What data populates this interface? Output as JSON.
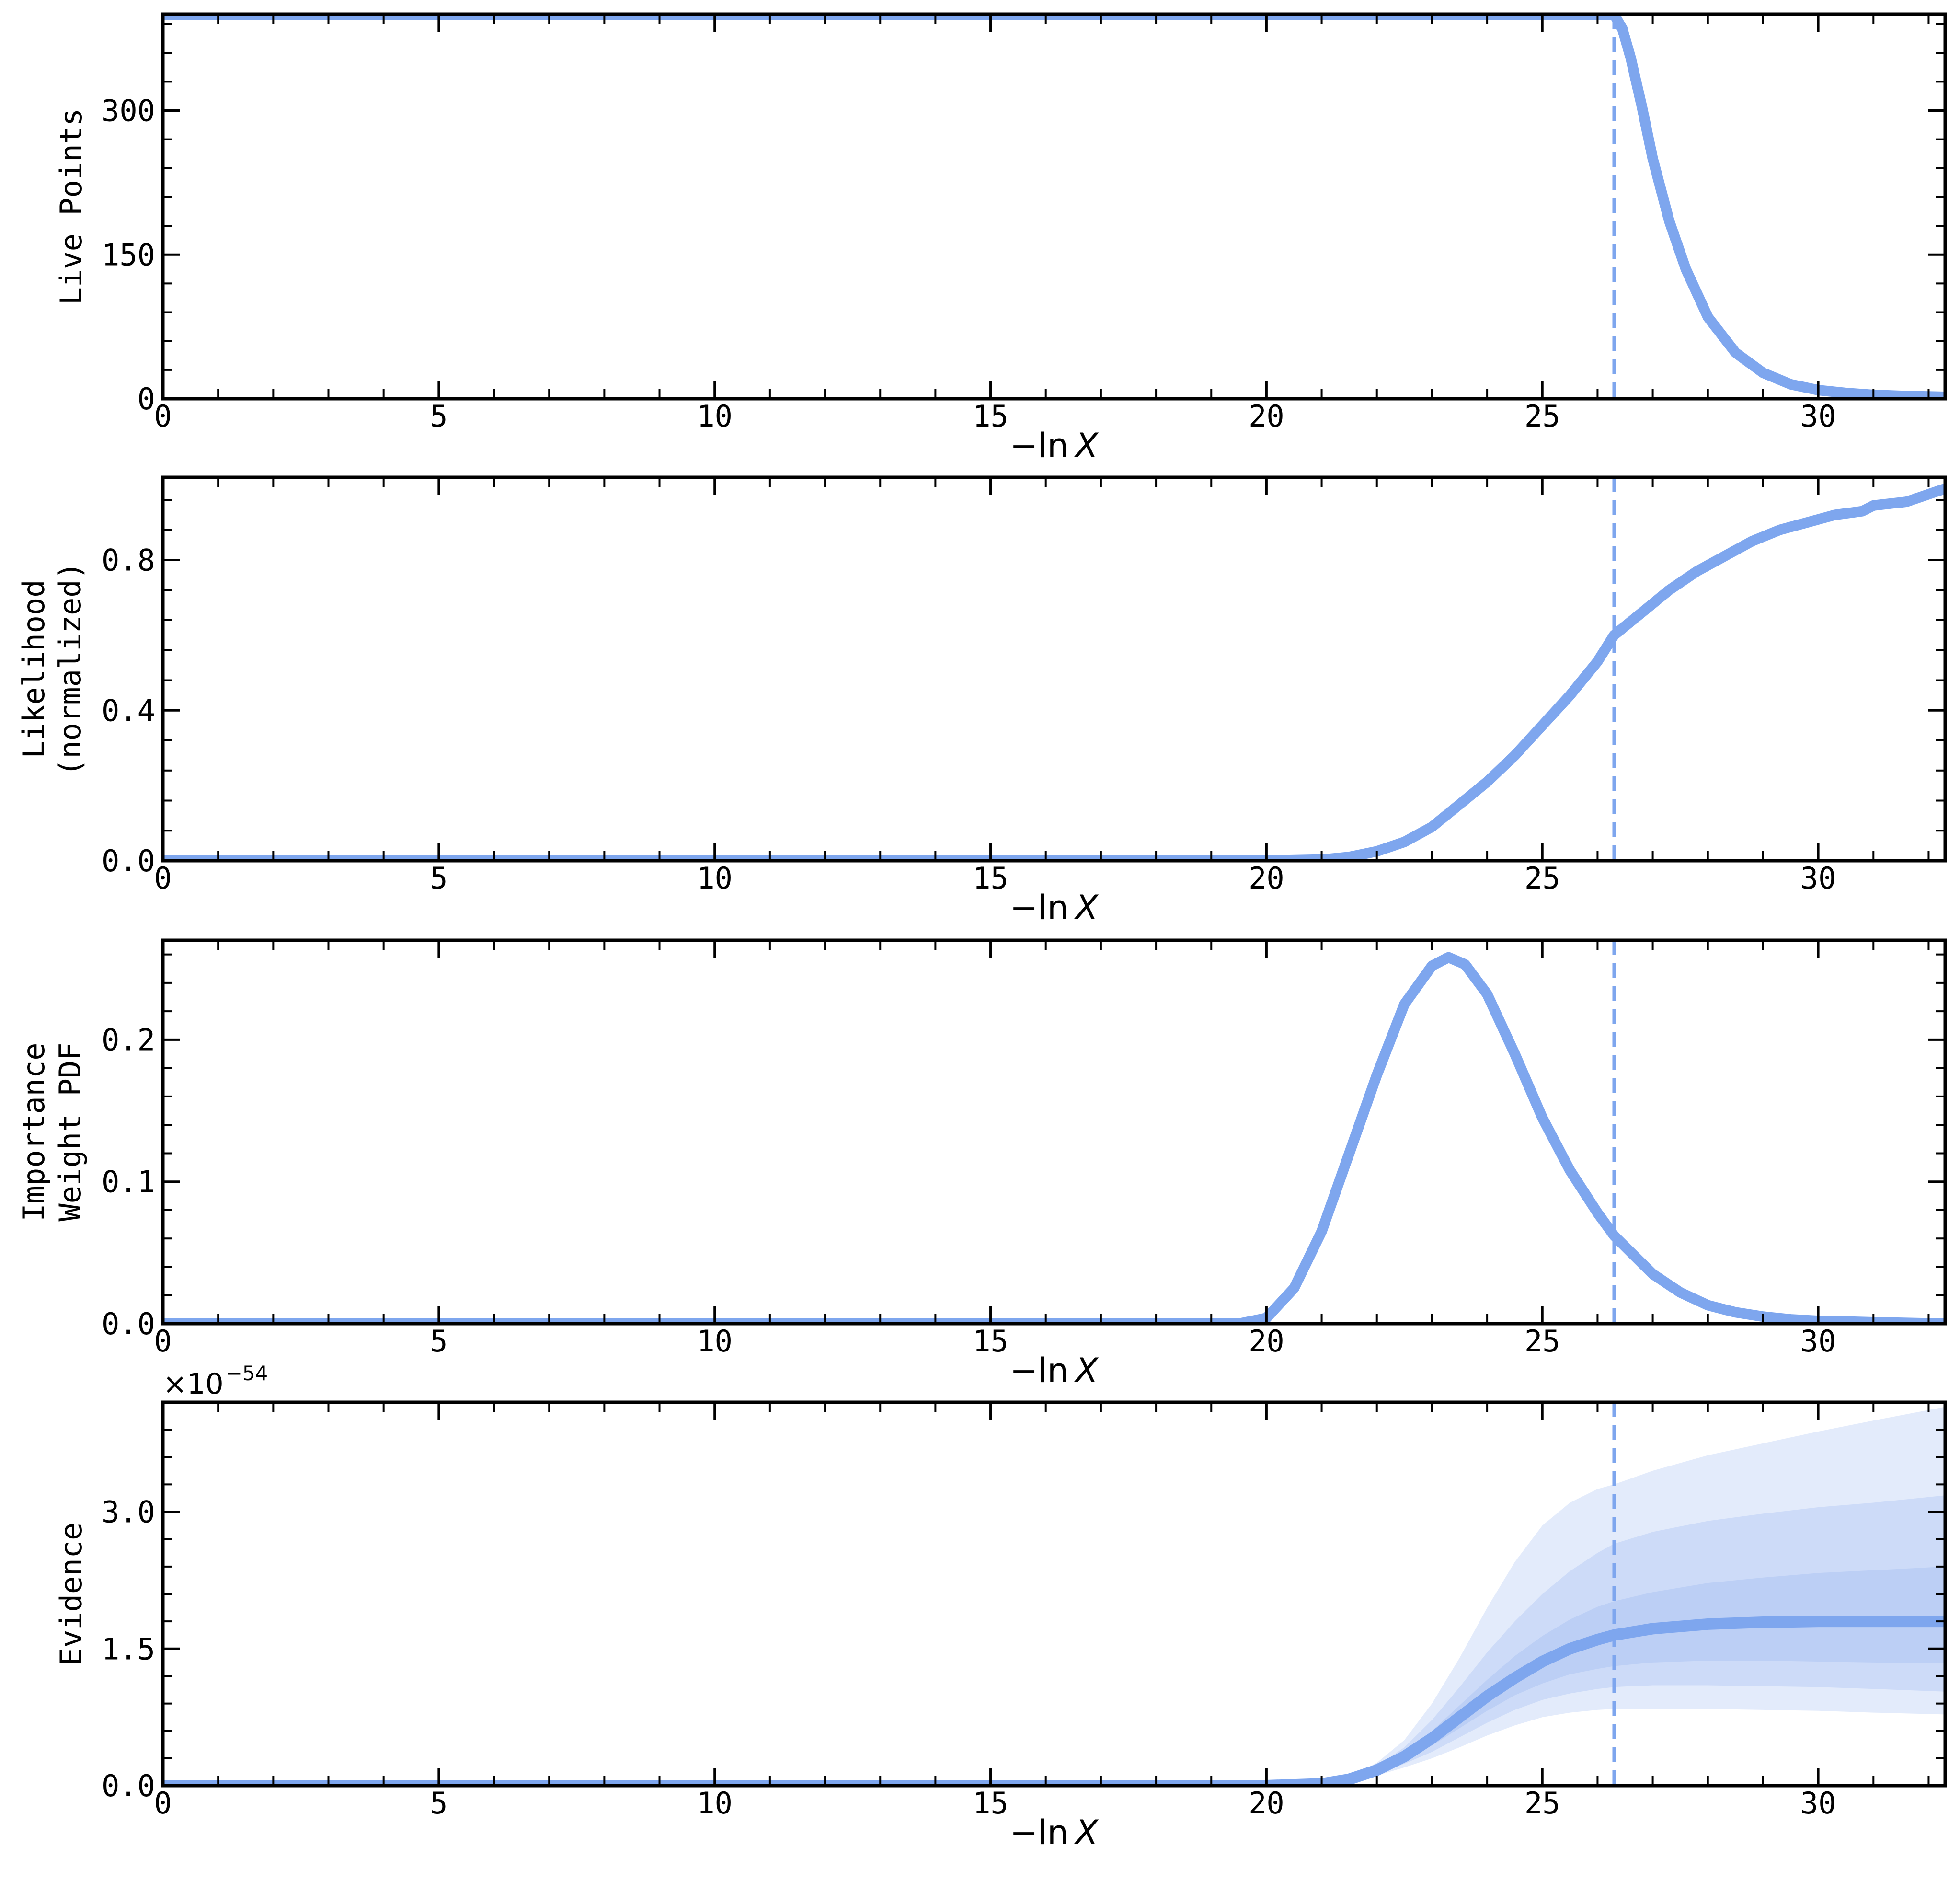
{
  "chart_data": [
    {
      "type": "line",
      "ylabel": [
        "Live Points"
      ],
      "xlabel_prefix": "−ln",
      "xlabel_var": "X",
      "xlim": [
        0,
        32.3
      ],
      "ylim": [
        0,
        400
      ],
      "xticks": [
        0,
        5,
        10,
        15,
        20,
        25,
        30
      ],
      "yticks": [
        0,
        150,
        300
      ],
      "ytick_labels": [
        "0",
        "150",
        "300"
      ],
      "vline_x": 26.3,
      "color": "#7ea6ee",
      "series": [
        {
          "x": [
            0,
            26.3,
            26.45,
            26.6,
            26.8,
            27.0,
            27.3,
            27.6,
            28.0,
            28.5,
            29.0,
            29.5,
            30.0,
            30.5,
            31.0,
            31.5,
            32.3
          ],
          "y": [
            400,
            400,
            385,
            355,
            305,
            250,
            185,
            135,
            85,
            48,
            27,
            15,
            9,
            6,
            4,
            3,
            2
          ]
        }
      ]
    },
    {
      "type": "line",
      "ylabel": [
        "Likelihood",
        "(normalized)"
      ],
      "xlabel_prefix": "−ln",
      "xlabel_var": "X",
      "xlim": [
        0,
        32.3
      ],
      "ylim": [
        0,
        1.02
      ],
      "xticks": [
        0,
        5,
        10,
        15,
        20,
        25,
        30
      ],
      "yticks": [
        0.0,
        0.4,
        0.8
      ],
      "ytick_labels": [
        "0.0",
        "0.4",
        "0.8"
      ],
      "vline_x": 26.3,
      "color": "#7ea6ee",
      "series": [
        {
          "x": [
            0,
            20.0,
            21.0,
            21.5,
            22.0,
            22.5,
            23.0,
            23.5,
            24.0,
            24.5,
            25.0,
            25.5,
            26.0,
            26.3,
            26.8,
            27.3,
            27.8,
            28.3,
            28.8,
            29.3,
            29.8,
            30.3,
            30.8,
            31.0,
            31.6,
            32.3
          ],
          "y": [
            0,
            0,
            0.003,
            0.01,
            0.025,
            0.05,
            0.09,
            0.15,
            0.21,
            0.28,
            0.36,
            0.44,
            0.53,
            0.6,
            0.66,
            0.72,
            0.77,
            0.81,
            0.85,
            0.88,
            0.9,
            0.92,
            0.93,
            0.945,
            0.955,
            0.99
          ]
        }
      ]
    },
    {
      "type": "line",
      "ylabel": [
        "Importance",
        "Weight PDF"
      ],
      "xlabel_prefix": "−ln",
      "xlabel_var": "X",
      "xlim": [
        0,
        32.3
      ],
      "ylim": [
        0,
        0.27
      ],
      "xticks": [
        0,
        5,
        10,
        15,
        20,
        25,
        30
      ],
      "yticks": [
        0.0,
        0.1,
        0.2
      ],
      "ytick_labels": [
        "0.0",
        "0.1",
        "0.2"
      ],
      "vline_x": 26.3,
      "color": "#7ea6ee",
      "series": [
        {
          "x": [
            0,
            19.5,
            20.0,
            20.5,
            21.0,
            21.5,
            22.0,
            22.5,
            23.0,
            23.3,
            23.6,
            24.0,
            24.5,
            25.0,
            25.5,
            26.0,
            26.3,
            27.0,
            27.5,
            28.0,
            28.5,
            29.0,
            29.5,
            30.0,
            31.0,
            32.3
          ],
          "y": [
            0,
            0,
            0.004,
            0.025,
            0.065,
            0.12,
            0.175,
            0.225,
            0.252,
            0.258,
            0.253,
            0.232,
            0.19,
            0.145,
            0.108,
            0.078,
            0.062,
            0.035,
            0.022,
            0.013,
            0.008,
            0.005,
            0.003,
            0.002,
            0.001,
            0.0
          ]
        }
      ]
    },
    {
      "type": "area",
      "ylabel": [
        "Evidence"
      ],
      "xlabel_prefix": "−ln",
      "xlabel_var": "X",
      "xlim": [
        0,
        32.3
      ],
      "ylim": [
        0,
        4.2
      ],
      "xticks": [
        0,
        5,
        10,
        15,
        20,
        25,
        30
      ],
      "yticks": [
        0.0,
        1.5,
        3.0
      ],
      "ytick_labels": [
        "0.0",
        "1.5",
        "3.0"
      ],
      "offset_base": "×10",
      "offset_exp": "−54",
      "vline_x": 26.3,
      "color": "#7ea6ee",
      "x": [
        0,
        20.0,
        21.0,
        21.5,
        22.0,
        22.5,
        23.0,
        23.5,
        24.0,
        24.5,
        25.0,
        25.5,
        26.0,
        26.3,
        27.0,
        28.0,
        29.0,
        30.0,
        31.0,
        32.3
      ],
      "median": [
        0,
        0,
        0.02,
        0.07,
        0.17,
        0.32,
        0.52,
        0.75,
        0.98,
        1.18,
        1.36,
        1.5,
        1.6,
        1.65,
        1.72,
        1.77,
        1.79,
        1.8,
        1.8,
        1.8
      ],
      "bands": [
        {
          "level": "3sigma",
          "lower": [
            0,
            0,
            0.015,
            0.05,
            0.11,
            0.2,
            0.3,
            0.42,
            0.55,
            0.66,
            0.75,
            0.8,
            0.83,
            0.84,
            0.84,
            0.84,
            0.83,
            0.82,
            0.8,
            0.78
          ],
          "upper": [
            0,
            0,
            0.03,
            0.1,
            0.25,
            0.5,
            0.9,
            1.4,
            1.95,
            2.45,
            2.85,
            3.1,
            3.25,
            3.3,
            3.45,
            3.62,
            3.75,
            3.88,
            4.0,
            4.15
          ]
        },
        {
          "level": "2sigma",
          "lower": [
            0,
            0,
            0.018,
            0.058,
            0.13,
            0.24,
            0.37,
            0.53,
            0.69,
            0.83,
            0.94,
            1.01,
            1.06,
            1.08,
            1.1,
            1.1,
            1.09,
            1.08,
            1.06,
            1.03
          ],
          "upper": [
            0,
            0,
            0.026,
            0.085,
            0.21,
            0.42,
            0.72,
            1.08,
            1.46,
            1.8,
            2.1,
            2.35,
            2.55,
            2.65,
            2.78,
            2.9,
            2.98,
            3.05,
            3.1,
            3.18
          ]
        },
        {
          "level": "1sigma",
          "lower": [
            0,
            0,
            0.019,
            0.064,
            0.15,
            0.28,
            0.44,
            0.63,
            0.82,
            0.99,
            1.12,
            1.22,
            1.28,
            1.31,
            1.35,
            1.37,
            1.37,
            1.36,
            1.35,
            1.34
          ],
          "upper": [
            0,
            0,
            0.022,
            0.076,
            0.19,
            0.36,
            0.6,
            0.88,
            1.16,
            1.42,
            1.64,
            1.82,
            1.96,
            2.02,
            2.12,
            2.22,
            2.28,
            2.33,
            2.36,
            2.4
          ]
        }
      ]
    }
  ]
}
